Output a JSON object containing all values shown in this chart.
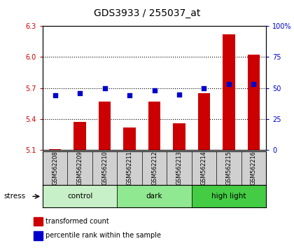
{
  "title": "GDS3933 / 255037_at",
  "samples": [
    "GSM562208",
    "GSM562209",
    "GSM562210",
    "GSM562211",
    "GSM562212",
    "GSM562213",
    "GSM562214",
    "GSM562215",
    "GSM562216"
  ],
  "bar_values": [
    5.11,
    5.37,
    5.57,
    5.32,
    5.57,
    5.36,
    5.65,
    6.22,
    6.02
  ],
  "dot_values": [
    44,
    46,
    50,
    44,
    48,
    45,
    50,
    53,
    53
  ],
  "groups": [
    {
      "label": "control",
      "start": 0,
      "end": 3,
      "color": "#c8f0c8"
    },
    {
      "label": "dark",
      "start": 3,
      "end": 6,
      "color": "#90e890"
    },
    {
      "label": "high light",
      "start": 6,
      "end": 9,
      "color": "#44cc44"
    }
  ],
  "ylim_left": [
    5.1,
    6.3
  ],
  "ylim_right": [
    0,
    100
  ],
  "yticks_left": [
    5.1,
    5.4,
    5.7,
    6.0,
    6.3
  ],
  "yticks_right": [
    0,
    25,
    50,
    75,
    100
  ],
  "ytick_labels_right": [
    "0",
    "25",
    "50",
    "75",
    "100%"
  ],
  "bar_color": "#cc0000",
  "dot_color": "#0000cc",
  "stress_label": "stress",
  "legend_items": [
    "transformed count",
    "percentile rank within the sample"
  ],
  "label_bg": "#d0d0d0",
  "bar_width": 0.5,
  "grid_yticks": [
    5.4,
    5.7,
    6.0
  ]
}
